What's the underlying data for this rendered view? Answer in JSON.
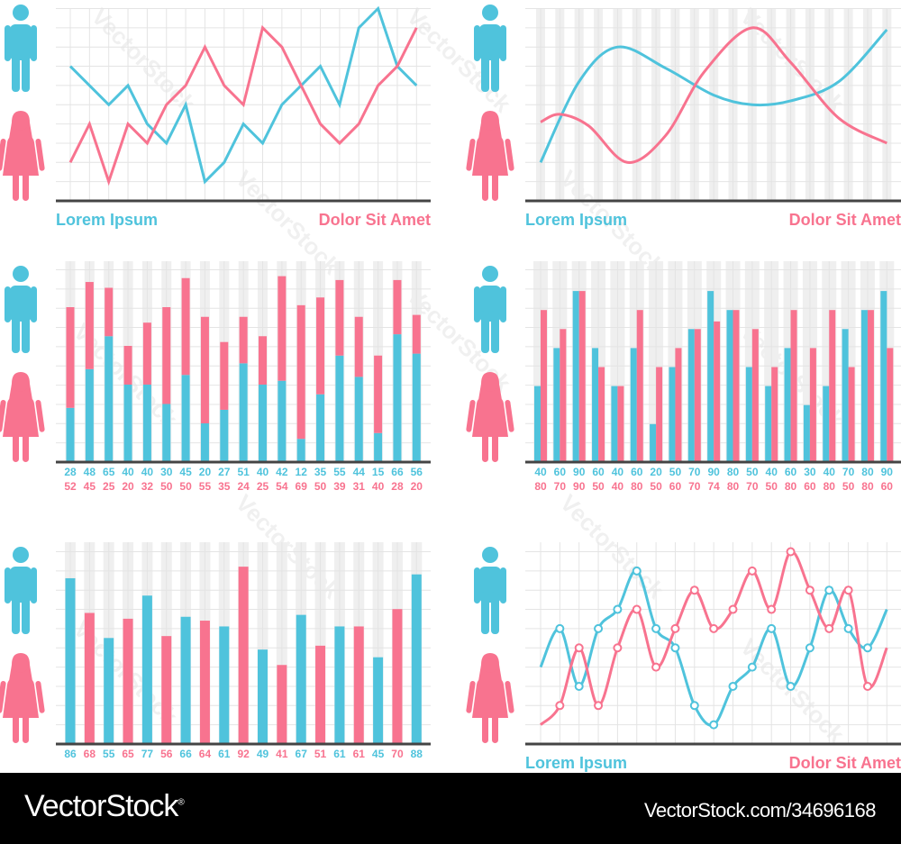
{
  "colors": {
    "blue": "#4fc3dc",
    "pink": "#f8738f",
    "baseline": "#444444",
    "grid": "#e4e4e4",
    "stripe": "#efefef"
  },
  "icons": {
    "male": "man-figure-icon",
    "female": "woman-figure-icon"
  },
  "watermark": "VectorStock",
  "footer": {
    "brand": "VectorStock",
    "brand_mark": "®",
    "url": "VectorStock.com/34696168"
  },
  "chart_data": [
    {
      "type": "line",
      "legend": {
        "left": "Lorem Ipsum",
        "right": "Dolor Sit Amet"
      },
      "ylim": [
        0,
        10
      ],
      "grid": true,
      "x": [
        1,
        2,
        3,
        4,
        5,
        6,
        7,
        8,
        9,
        10,
        11,
        12,
        13,
        14,
        15,
        16,
        17,
        18,
        19
      ],
      "series": [
        {
          "color": "blue",
          "values": [
            7,
            6,
            5,
            6,
            4,
            3,
            5,
            1,
            2,
            4,
            3,
            5,
            6,
            7,
            5,
            9,
            10,
            7,
            6
          ]
        },
        {
          "color": "pink",
          "values": [
            2,
            4,
            1,
            4,
            3,
            5,
            6,
            8,
            6,
            5,
            9,
            8,
            6,
            4,
            3,
            4,
            6,
            7,
            9
          ]
        }
      ]
    },
    {
      "type": "line",
      "smooth": true,
      "legend": {
        "left": "Lorem Ipsum",
        "right": "Dolor Sit Amet"
      },
      "ylim": [
        0,
        10
      ],
      "grid": true,
      "series": [
        {
          "color": "blue",
          "x": [
            0,
            2,
            4,
            6.5,
            9,
            11,
            13,
            15.5,
            18
          ],
          "values": [
            2,
            6.2,
            8,
            6.9,
            5.5,
            5,
            5.2,
            6.2,
            8.9
          ]
        },
        {
          "color": "pink",
          "x": [
            0,
            1,
            2.5,
            4.5,
            6.5,
            8.5,
            11,
            13,
            15.5,
            18
          ],
          "values": [
            4.1,
            4.5,
            3.9,
            2,
            3.4,
            6.7,
            9,
            7.2,
            4.3,
            3
          ]
        }
      ]
    },
    {
      "type": "bar",
      "stacked": true,
      "series": [
        {
          "color": "blue",
          "values": [
            28,
            48,
            65,
            40,
            40,
            30,
            45,
            20,
            27,
            51,
            40,
            42,
            12,
            35,
            55,
            44,
            15,
            66,
            56
          ]
        },
        {
          "color": "pink",
          "values": [
            52,
            45,
            25,
            20,
            32,
            50,
            50,
            55,
            35,
            24,
            25,
            54,
            69,
            50,
            39,
            31,
            40,
            28,
            20
          ]
        }
      ]
    },
    {
      "type": "bar",
      "stacked": false,
      "series": [
        {
          "color": "blue",
          "values": [
            40,
            60,
            90,
            60,
            40,
            60,
            20,
            50,
            70,
            90,
            80,
            50,
            40,
            60,
            30,
            40,
            70,
            80,
            90
          ]
        },
        {
          "color": "pink",
          "values": [
            80,
            70,
            90,
            50,
            40,
            80,
            50,
            60,
            70,
            74,
            80,
            70,
            50,
            80,
            60,
            80,
            50,
            80,
            60
          ]
        }
      ]
    },
    {
      "type": "bar",
      "values": [
        86,
        68,
        55,
        65,
        77,
        56,
        66,
        64,
        61,
        92,
        49,
        41,
        67,
        51,
        61,
        61,
        45,
        70,
        88
      ],
      "colors": [
        "blue",
        "pink",
        "blue",
        "pink",
        "blue",
        "pink",
        "blue",
        "pink",
        "blue",
        "pink",
        "blue",
        "pink",
        "blue",
        "pink",
        "blue",
        "pink",
        "blue",
        "pink",
        "blue"
      ]
    },
    {
      "type": "line",
      "smooth": true,
      "markers": true,
      "legend": {
        "left": "Lorem Ipsum",
        "right": "Dolor Sit Amet"
      },
      "ylim": [
        0,
        10
      ],
      "grid": true,
      "x": [
        0,
        1,
        2,
        3,
        4,
        5,
        6,
        7,
        8,
        9,
        10,
        11,
        12,
        13,
        14,
        15,
        16,
        17,
        18
      ],
      "series": [
        {
          "color": "blue",
          "values": [
            4,
            6,
            3,
            6,
            7,
            9,
            6,
            5,
            2,
            1,
            3,
            4,
            6,
            3,
            5,
            8,
            6,
            5,
            7
          ]
        },
        {
          "color": "pink",
          "values": [
            1,
            2,
            5,
            2,
            5,
            7,
            4,
            6,
            8,
            6,
            7,
            9,
            7,
            10,
            8,
            6,
            8,
            3,
            5
          ]
        }
      ]
    }
  ]
}
